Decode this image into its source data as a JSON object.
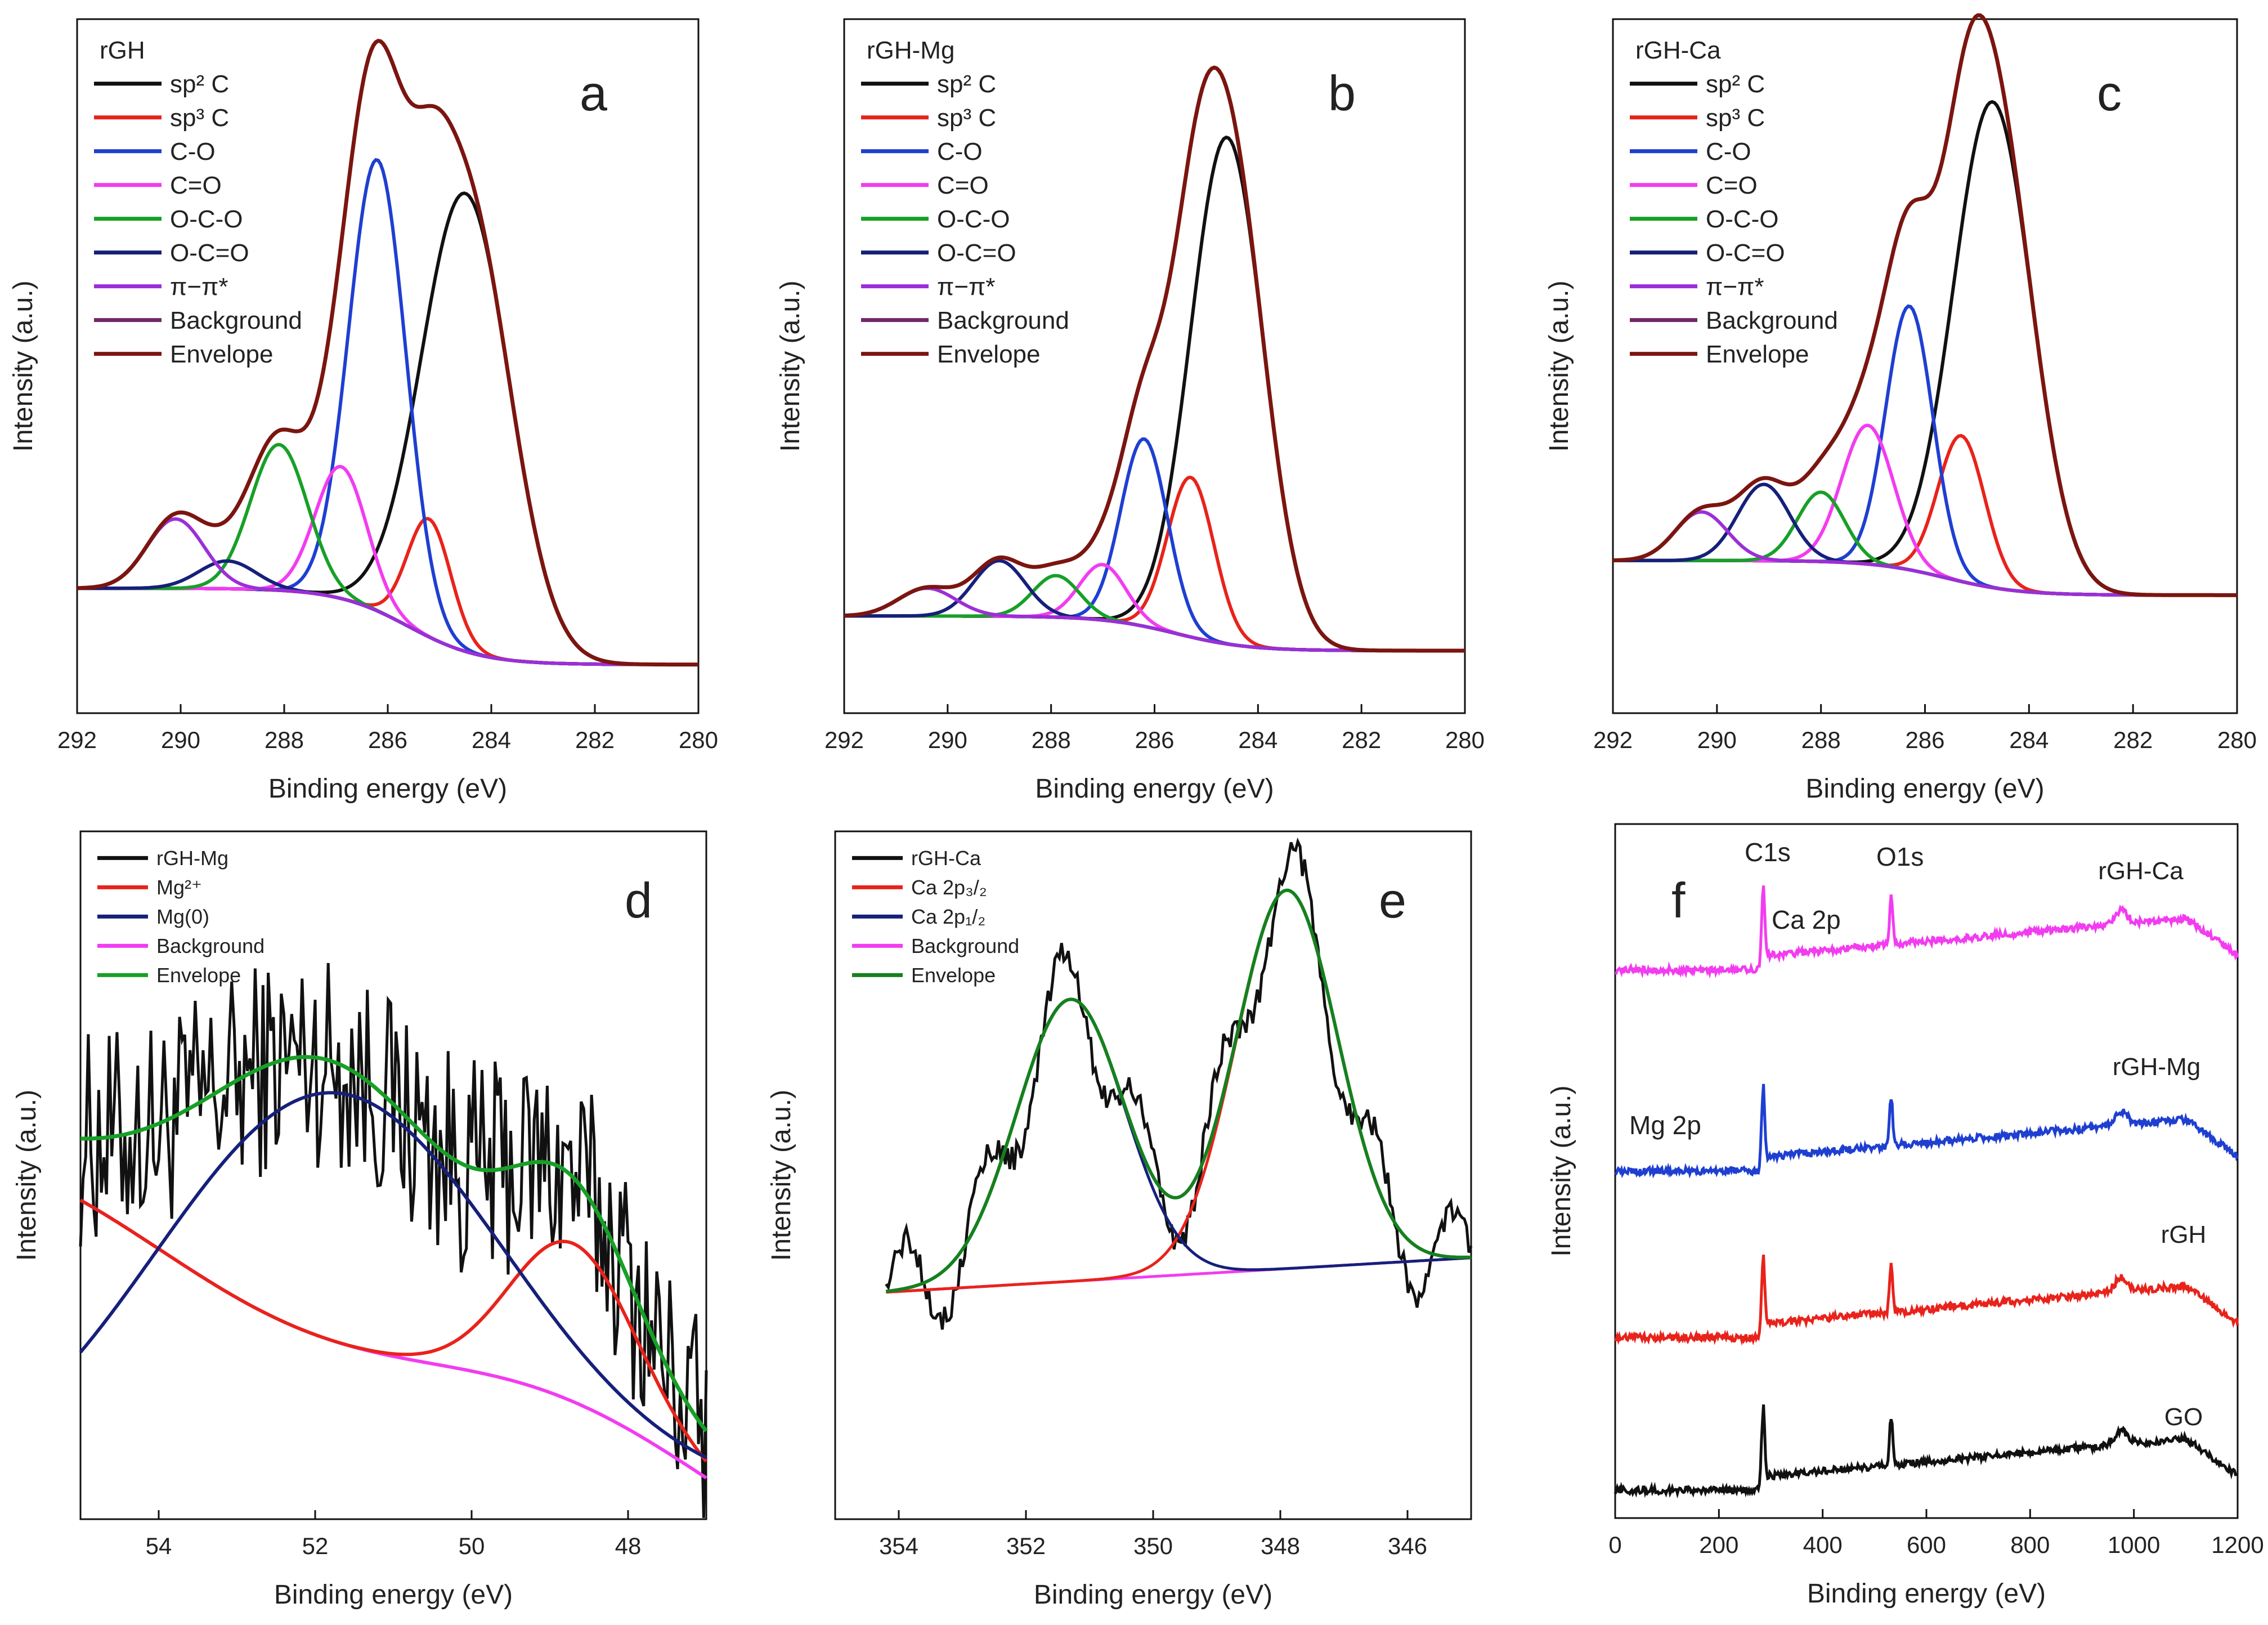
{
  "colors": {
    "black": "#111111",
    "red": "#e8231b",
    "blue": "#1f3fd1",
    "magenta": "#f23cf0",
    "green": "#17a027",
    "navy": "#16207a",
    "purple": "#9b2fd6",
    "plum": "#6e2a6a",
    "maroon": "#7b1510",
    "darkgreen": "#16801f"
  },
  "chart_data": [
    {
      "panel": "a",
      "type": "line",
      "title": "rGH",
      "xlabel": "Binding energy (eV)",
      "ylabel": "Intensity (a.u.)",
      "xlim": [
        292,
        280
      ],
      "xticks": [
        292,
        290,
        288,
        286,
        284,
        282,
        280
      ],
      "legend": [
        {
          "label": "sp² C",
          "color": "black"
        },
        {
          "label": "sp³ C",
          "color": "red"
        },
        {
          "label": "C-O",
          "color": "blue"
        },
        {
          "label": "C=O",
          "color": "magenta"
        },
        {
          "label": "O-C-O",
          "color": "green"
        },
        {
          "label": "O-C=O",
          "color": "navy"
        },
        {
          "label": "π−π*",
          "color": "purple"
        },
        {
          "label": "Background",
          "color": "plum"
        },
        {
          "label": "Envelope",
          "color": "maroon"
        }
      ],
      "peaks": [
        {
          "name": "sp² C",
          "center": 284.5,
          "height": 0.66,
          "width": 0.85
        },
        {
          "name": "sp³ C",
          "center": 285.2,
          "height": 0.17,
          "width": 0.42
        },
        {
          "name": "C-O",
          "center": 286.2,
          "height": 0.65,
          "width": 0.55
        },
        {
          "name": "C=O",
          "center": 286.9,
          "height": 0.19,
          "width": 0.5
        },
        {
          "name": "O-C-O",
          "center": 288.1,
          "height": 0.21,
          "width": 0.55
        },
        {
          "name": "O-C=O",
          "center": 289.1,
          "height": 0.04,
          "width": 0.55
        },
        {
          "name": "π−π*",
          "center": 290.1,
          "height": 0.1,
          "width": 0.55
        }
      ],
      "background": {
        "high": 0.18,
        "low": 0.07,
        "step_center": 285.6
      }
    },
    {
      "panel": "b",
      "type": "line",
      "title": "rGH-Mg",
      "xlabel": "Binding energy (eV)",
      "ylabel": "Intensity (a.u.)",
      "xlim": [
        292,
        280
      ],
      "xticks": [
        292,
        290,
        288,
        286,
        284,
        282,
        280
      ],
      "legend": [
        {
          "label": "sp² C",
          "color": "black"
        },
        {
          "label": "sp³ C",
          "color": "red"
        },
        {
          "label": "C-O",
          "color": "blue"
        },
        {
          "label": "C=O",
          "color": "magenta"
        },
        {
          "label": "O-C-O",
          "color": "green"
        },
        {
          "label": "O-C=O",
          "color": "navy"
        },
        {
          "label": "π−π*",
          "color": "purple"
        },
        {
          "label": "Background",
          "color": "plum"
        },
        {
          "label": "Envelope",
          "color": "maroon"
        }
      ],
      "peaks": [
        {
          "name": "sp² C",
          "center": 284.6,
          "height": 0.73,
          "width": 0.7
        },
        {
          "name": "sp³ C",
          "center": 285.3,
          "height": 0.23,
          "width": 0.45
        },
        {
          "name": "C-O",
          "center": 286.2,
          "height": 0.27,
          "width": 0.45
        },
        {
          "name": "C=O",
          "center": 287.0,
          "height": 0.08,
          "width": 0.45
        },
        {
          "name": "O-C-O",
          "center": 287.9,
          "height": 0.06,
          "width": 0.45
        },
        {
          "name": "O-C=O",
          "center": 289.0,
          "height": 0.08,
          "width": 0.5
        },
        {
          "name": "π−π*",
          "center": 290.4,
          "height": 0.04,
          "width": 0.55
        }
      ],
      "background": {
        "high": 0.14,
        "low": 0.09,
        "step_center": 285.6
      }
    },
    {
      "panel": "c",
      "type": "line",
      "title": "rGH-Ca",
      "xlabel": "Binding energy (eV)",
      "ylabel": "Intensity (a.u.)",
      "xlim": [
        292,
        280
      ],
      "xticks": [
        292,
        290,
        288,
        286,
        284,
        282,
        280
      ],
      "legend": [
        {
          "label": "sp² C",
          "color": "black"
        },
        {
          "label": "sp³ C",
          "color": "red"
        },
        {
          "label": "C-O",
          "color": "blue"
        },
        {
          "label": "C=O",
          "color": "magenta"
        },
        {
          "label": "O-C-O",
          "color": "green"
        },
        {
          "label": "O-C=O",
          "color": "navy"
        },
        {
          "label": "π−π*",
          "color": "purple"
        },
        {
          "label": "Background",
          "color": "plum"
        },
        {
          "label": "Envelope",
          "color": "maroon"
        }
      ],
      "peaks": [
        {
          "name": "sp² C",
          "center": 284.7,
          "height": 0.7,
          "width": 0.75
        },
        {
          "name": "sp³ C",
          "center": 285.3,
          "height": 0.21,
          "width": 0.45
        },
        {
          "name": "C-O",
          "center": 286.3,
          "height": 0.38,
          "width": 0.45
        },
        {
          "name": "C=O",
          "center": 287.1,
          "height": 0.2,
          "width": 0.5
        },
        {
          "name": "O-C-O",
          "center": 288.0,
          "height": 0.1,
          "width": 0.45
        },
        {
          "name": "O-C=O",
          "center": 289.1,
          "height": 0.11,
          "width": 0.5
        },
        {
          "name": "π−π*",
          "center": 290.3,
          "height": 0.07,
          "width": 0.5
        }
      ],
      "background": {
        "high": 0.22,
        "low": 0.17,
        "step_center": 285.6
      }
    },
    {
      "panel": "d",
      "type": "line",
      "title": "",
      "xlabel": "Binding energy (eV)",
      "ylabel": "Intensity (a.u.)",
      "xlim": [
        55,
        47
      ],
      "xticks": [
        54,
        52,
        50,
        48
      ],
      "legend": [
        {
          "label": "rGH-Mg",
          "color": "black"
        },
        {
          "label": "Mg²⁺",
          "color": "red"
        },
        {
          "label": "Mg(0)",
          "color": "navy"
        },
        {
          "label": "Background",
          "color": "magenta"
        },
        {
          "label": "Envelope",
          "color": "green"
        }
      ],
      "mg2_peak": {
        "center": 48.7,
        "height": 0.23,
        "width": 0.8
      },
      "mg0_peak": {
        "center": 51.8,
        "height": 0.59,
        "width": 1.6
      },
      "background_range": [
        0.44,
        0.06
      ]
    },
    {
      "panel": "e",
      "type": "line",
      "title": "",
      "xlabel": "Binding energy (eV)",
      "ylabel": "Intensity (a.u.)",
      "xlim": [
        355,
        345
      ],
      "xticks": [
        354,
        352,
        350,
        348,
        346
      ],
      "legend": [
        {
          "label": "rGH-Ca",
          "color": "black"
        },
        {
          "label": "Ca 2p₃/₂",
          "color": "red"
        },
        {
          "label": "Ca 2p₁/₂",
          "color": "navy"
        },
        {
          "label": "Background",
          "color": "magenta"
        },
        {
          "label": "Envelope",
          "color": "darkgreen"
        }
      ],
      "ca32_peak": {
        "center": 347.9,
        "height": 0.55,
        "width": 0.8
      },
      "ca12_peak": {
        "center": 351.3,
        "height": 0.41,
        "width": 0.85
      },
      "background_range": [
        0.33,
        0.38
      ]
    },
    {
      "panel": "f",
      "type": "line",
      "title": "",
      "xlabel": "Binding energy (eV)",
      "ylabel": "Intensity (a.u.)",
      "xlim": [
        0,
        1200
      ],
      "xticks": [
        0,
        200,
        400,
        600,
        800,
        1000,
        1200
      ],
      "peak_labels": [
        "C1s",
        "Ca 2p",
        "O1s",
        "Mg 2p"
      ],
      "series": [
        {
          "name": "rGH-Ca",
          "color": "magenta",
          "offset": 0.79
        },
        {
          "name": "rGH-Mg",
          "color": "blue",
          "offset": 0.5
        },
        {
          "name": "rGH",
          "color": "red",
          "offset": 0.26
        },
        {
          "name": "GO",
          "color": "black",
          "offset": 0.04
        }
      ]
    }
  ],
  "labels": {
    "a": "a",
    "b": "b",
    "c": "c",
    "d": "d",
    "e": "e",
    "f": "f",
    "a_title": "rGH",
    "b_title": "rGH-Mg",
    "c_title": "rGH-Ca",
    "f_c1s": "C1s",
    "f_ca2p": "Ca 2p",
    "f_o1s": "O1s",
    "f_mg2p": "Mg 2p",
    "f_s1": "rGH-Ca",
    "f_s2": "rGH-Mg",
    "f_s3": "rGH",
    "f_s4": "GO"
  }
}
